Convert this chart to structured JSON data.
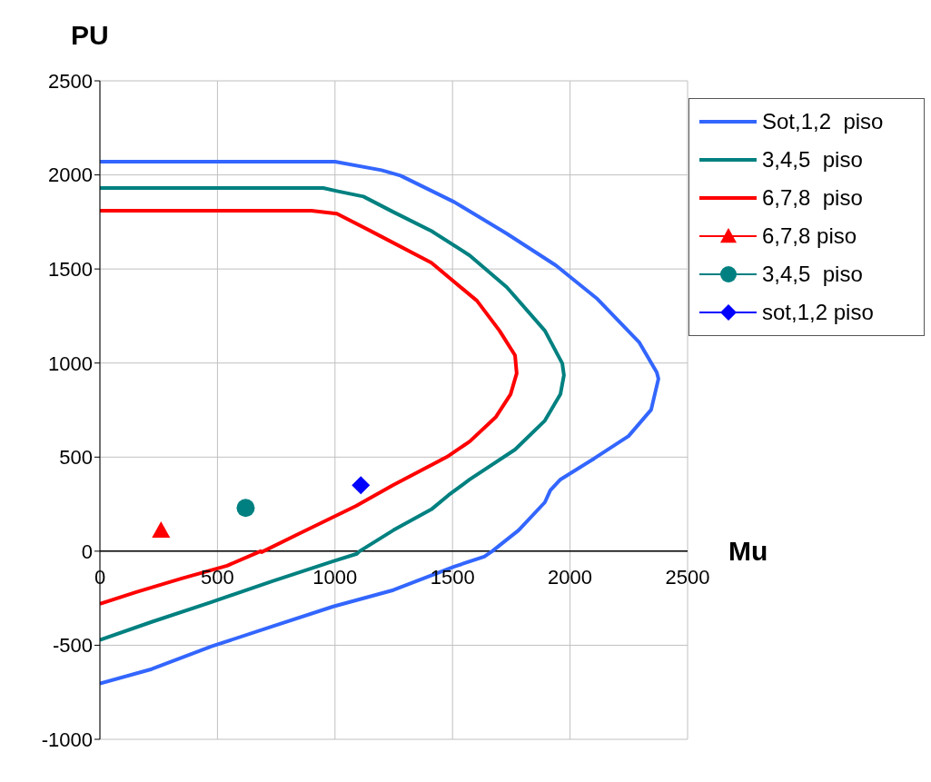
{
  "chart_data": {
    "type": "line",
    "xlabel": "Mu",
    "ylabel": "PU",
    "xlim": [
      0,
      2500
    ],
    "xticks": [
      0,
      500,
      1000,
      1500,
      2000,
      2500
    ],
    "ylim": [
      -1000,
      2500
    ],
    "yticks": [
      -1000,
      -500,
      0,
      500,
      1000,
      1500,
      2000,
      2500
    ],
    "grid": true,
    "legend": "top right",
    "marker": "none",
    "line_style": "solid",
    "series": [
      {
        "name": "Sot,1,2  piso",
        "color": "#3366ff",
        "x": [
          0,
          500,
          1000,
          1198,
          1279,
          1507,
          1731,
          1940,
          2117,
          2295,
          2369,
          2376,
          2345,
          2249,
          2102,
          1959,
          1916,
          1893,
          1781,
          1669,
          1635,
          1507,
          1248,
          993,
          734,
          475,
          220,
          0
        ],
        "values": [
          2070,
          2070,
          2070,
          2025,
          1996,
          1856,
          1688,
          1519,
          1340,
          1109,
          950,
          916,
          752,
          612,
          492,
          381,
          323,
          260,
          111,
          0,
          -29,
          -82,
          -207,
          -294,
          -400,
          -506,
          -627,
          -704
        ]
      },
      {
        "name": "3,4,5  piso",
        "color": "#008080",
        "x": [
          0,
          500,
          950,
          1008,
          1121,
          1248,
          1410,
          1573,
          1731,
          1893,
          1967,
          1974,
          1959,
          1893,
          1766,
          1573,
          1484,
          1410,
          1248,
          1105,
          1093,
          993,
          734,
          475,
          220,
          0
        ],
        "values": [
          1930,
          1930,
          1930,
          1914,
          1885,
          1803,
          1702,
          1572,
          1403,
          1172,
          998,
          935,
          834,
          694,
          540,
          381,
          299,
          222,
          111,
          0,
          -14,
          -53,
          -159,
          -270,
          -376,
          -472
        ]
      },
      {
        "name": "6,7,8  piso",
        "color": "#ff0000",
        "x": [
          0,
          500,
          900,
          1008,
          1167,
          1410,
          1604,
          1700,
          1766,
          1773,
          1747,
          1685,
          1573,
          1476,
          1248,
          1090,
          846,
          688,
          684,
          541,
          348,
          155,
          0
        ],
        "values": [
          1810,
          1810,
          1810,
          1794,
          1692,
          1533,
          1331,
          1172,
          1041,
          945,
          834,
          714,
          583,
          501,
          352,
          241,
          92,
          -5,
          0,
          -77,
          -145,
          -217,
          -280
        ]
      },
      {
        "name": "6,7,8 piso",
        "type": "scatter",
        "marker": "triangle",
        "color": "#ff0000",
        "x": [
          260
        ],
        "values": [
          110
        ]
      },
      {
        "name": "3,4,5  piso",
        "type": "scatter",
        "marker": "circle",
        "color": "#008080",
        "x": [
          620
        ],
        "values": [
          230
        ]
      },
      {
        "name": "sot,1,2 piso",
        "type": "scatter",
        "marker": "diamond",
        "color": "#0000ff",
        "x": [
          1110
        ],
        "values": [
          350
        ]
      }
    ]
  }
}
